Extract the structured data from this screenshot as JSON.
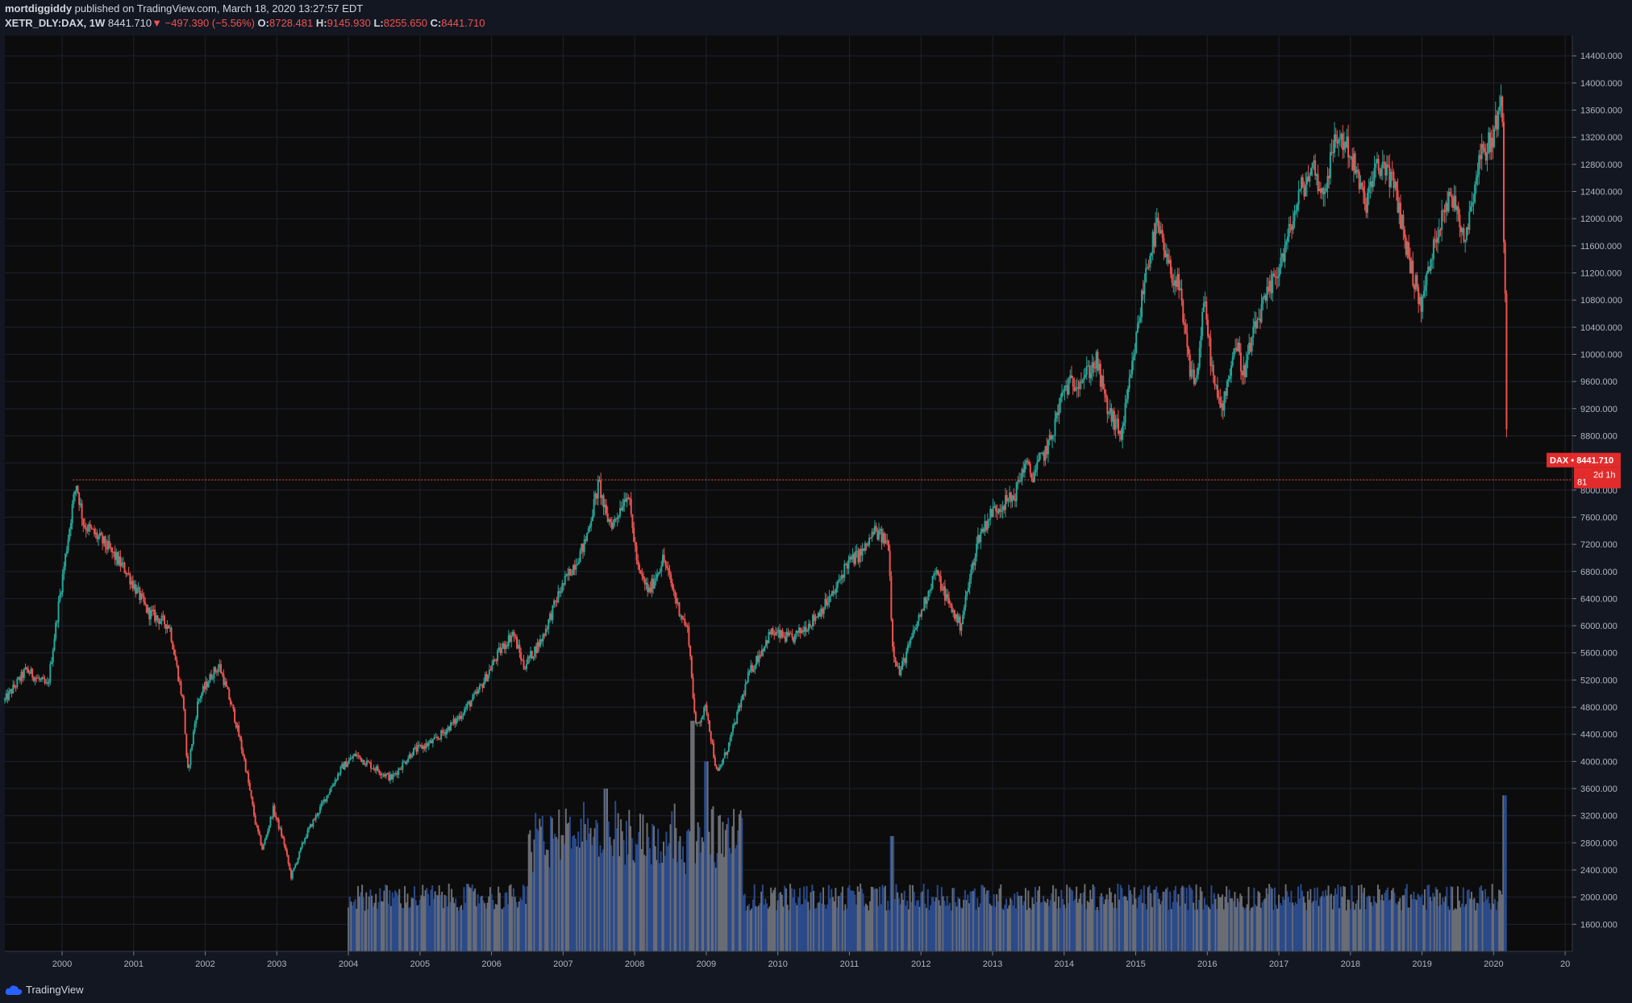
{
  "header": {
    "author": "mortdiggiddy",
    "published_text": "published on TradingView.com, March 18, 2020 13:27:57 EDT",
    "symbol": "XETR_DLY:DAX, 1W",
    "last": "8441.710",
    "change": "−497.390 (−5.56%)",
    "o_label": "O:",
    "o": "8728.481",
    "h_label": "H:",
    "h": "9145.930",
    "l_label": "L:",
    "l": "8255.650",
    "c_label": "C:",
    "c": "8441.710"
  },
  "footer": {
    "brand": "TradingView"
  },
  "colors": {
    "background": "#131722",
    "up": "#26a69a",
    "down": "#ef5350",
    "volume_blue": "#2a4a8a",
    "volume_gray": "#6a6d74",
    "grid": "#1e2230",
    "support_line": "#ef5350"
  },
  "chart_data": {
    "type": "candlestick",
    "title": "",
    "xlabel": "",
    "ylabel": "",
    "x_ticks": [
      "2000",
      "2001",
      "2002",
      "2003",
      "2004",
      "2005",
      "2006",
      "2007",
      "2008",
      "2009",
      "2010",
      "2011",
      "2012",
      "2013",
      "2014",
      "2015",
      "2016",
      "2017",
      "2018",
      "2019",
      "2020",
      "20"
    ],
    "y_ticks": [
      "14400.000",
      "14000.000",
      "13600.000",
      "13200.000",
      "12800.000",
      "12400.000",
      "12000.000",
      "11600.000",
      "11200.000",
      "10800.000",
      "10400.000",
      "10000.000",
      "9600.000",
      "9200.000",
      "8800.000",
      "8400.000",
      "8000.000",
      "7600.000",
      "7200.000",
      "6800.000",
      "6400.000",
      "6000.000",
      "5600.000",
      "5200.000",
      "4800.000",
      "4400.000",
      "4000.000",
      "3600.000",
      "3200.000",
      "2800.000",
      "2400.000",
      "2000.000",
      "1600.000"
    ],
    "ylim": [
      1200,
      14700
    ],
    "xlim": [
      1999.2,
      2021.1
    ],
    "grid": true,
    "last_price_label": "DAX • 8441.710",
    "countdown_label": "2d 1h",
    "support_label": "81",
    "support_level": 8150,
    "price_path": [
      [
        1999.2,
        4900
      ],
      [
        1999.5,
        5350
      ],
      [
        1999.8,
        5100
      ],
      [
        1999.95,
        6300
      ],
      [
        2000.15,
        7800
      ],
      [
        2000.2,
        8100
      ],
      [
        2000.3,
        7500
      ],
      [
        2000.6,
        7200
      ],
      [
        2000.9,
        6800
      ],
      [
        2001.2,
        6200
      ],
      [
        2001.5,
        6000
      ],
      [
        2001.7,
        4800
      ],
      [
        2001.75,
        3800
      ],
      [
        2001.9,
        4900
      ],
      [
        2002.1,
        5300
      ],
      [
        2002.2,
        5400
      ],
      [
        2002.4,
        4700
      ],
      [
        2002.55,
        4000
      ],
      [
        2002.7,
        3100
      ],
      [
        2002.8,
        2700
      ],
      [
        2002.95,
        3300
      ],
      [
        2003.1,
        2800
      ],
      [
        2003.2,
        2300
      ],
      [
        2003.4,
        2900
      ],
      [
        2003.7,
        3500
      ],
      [
        2003.9,
        3900
      ],
      [
        2004.1,
        4100
      ],
      [
        2004.3,
        3950
      ],
      [
        2004.6,
        3750
      ],
      [
        2004.9,
        4150
      ],
      [
        2005.2,
        4300
      ],
      [
        2005.5,
        4600
      ],
      [
        2005.8,
        5000
      ],
      [
        2006.1,
        5600
      ],
      [
        2006.3,
        5900
      ],
      [
        2006.45,
        5400
      ],
      [
        2006.7,
        5800
      ],
      [
        2006.95,
        6500
      ],
      [
        2007.3,
        7200
      ],
      [
        2007.5,
        8100
      ],
      [
        2007.6,
        7600
      ],
      [
        2007.7,
        7500
      ],
      [
        2007.9,
        8000
      ],
      [
        2008.05,
        6800
      ],
      [
        2008.2,
        6500
      ],
      [
        2008.4,
        7000
      ],
      [
        2008.6,
        6300
      ],
      [
        2008.75,
        5900
      ],
      [
        2008.85,
        4500
      ],
      [
        2009.0,
        4800
      ],
      [
        2009.15,
        3800
      ],
      [
        2009.3,
        4200
      ],
      [
        2009.6,
        5300
      ],
      [
        2009.9,
        5900
      ],
      [
        2010.2,
        5800
      ],
      [
        2010.5,
        6100
      ],
      [
        2010.8,
        6500
      ],
      [
        2010.95,
        6900
      ],
      [
        2011.2,
        7100
      ],
      [
        2011.35,
        7400
      ],
      [
        2011.55,
        7200
      ],
      [
        2011.6,
        5700
      ],
      [
        2011.7,
        5300
      ],
      [
        2011.9,
        5900
      ],
      [
        2012.2,
        6800
      ],
      [
        2012.4,
        6300
      ],
      [
        2012.55,
        6000
      ],
      [
        2012.8,
        7300
      ],
      [
        2013.0,
        7700
      ],
      [
        2013.3,
        7900
      ],
      [
        2013.45,
        8400
      ],
      [
        2013.55,
        8200
      ],
      [
        2013.8,
        8700
      ],
      [
        2014.0,
        9500
      ],
      [
        2014.3,
        9700
      ],
      [
        2014.45,
        9900
      ],
      [
        2014.6,
        9200
      ],
      [
        2014.8,
        8800
      ],
      [
        2014.95,
        9800
      ],
      [
        2015.15,
        11300
      ],
      [
        2015.3,
        11900
      ],
      [
        2015.45,
        11300
      ],
      [
        2015.6,
        11000
      ],
      [
        2015.75,
        9800
      ],
      [
        2015.85,
        9600
      ],
      [
        2015.95,
        10800
      ],
      [
        2016.1,
        9500
      ],
      [
        2016.2,
        9200
      ],
      [
        2016.4,
        10200
      ],
      [
        2016.5,
        9700
      ],
      [
        2016.7,
        10500
      ],
      [
        2016.9,
        11000
      ],
      [
        2017.1,
        11600
      ],
      [
        2017.3,
        12400
      ],
      [
        2017.5,
        12800
      ],
      [
        2017.6,
        12300
      ],
      [
        2017.8,
        13200
      ],
      [
        2017.95,
        13100
      ],
      [
        2018.1,
        12600
      ],
      [
        2018.2,
        12200
      ],
      [
        2018.35,
        12700
      ],
      [
        2018.5,
        12800
      ],
      [
        2018.65,
        12300
      ],
      [
        2018.8,
        11500
      ],
      [
        2018.98,
        10700
      ],
      [
        2019.15,
        11500
      ],
      [
        2019.3,
        12200
      ],
      [
        2019.45,
        12300
      ],
      [
        2019.6,
        11700
      ],
      [
        2019.8,
        12900
      ],
      [
        2020.0,
        13200
      ],
      [
        2020.08,
        13700
      ],
      [
        2020.12,
        13600
      ],
      [
        2020.14,
        11900
      ],
      [
        2020.16,
        11200
      ],
      [
        2020.175,
        9200
      ],
      [
        2020.19,
        8441.71
      ]
    ],
    "volume_start": 2004.0,
    "volume_peaks": [
      [
        2007.6,
        3600
      ],
      [
        2008.8,
        4600
      ],
      [
        2009.0,
        4000
      ],
      [
        2011.6,
        2900
      ],
      [
        2020.15,
        3500
      ]
    ]
  }
}
